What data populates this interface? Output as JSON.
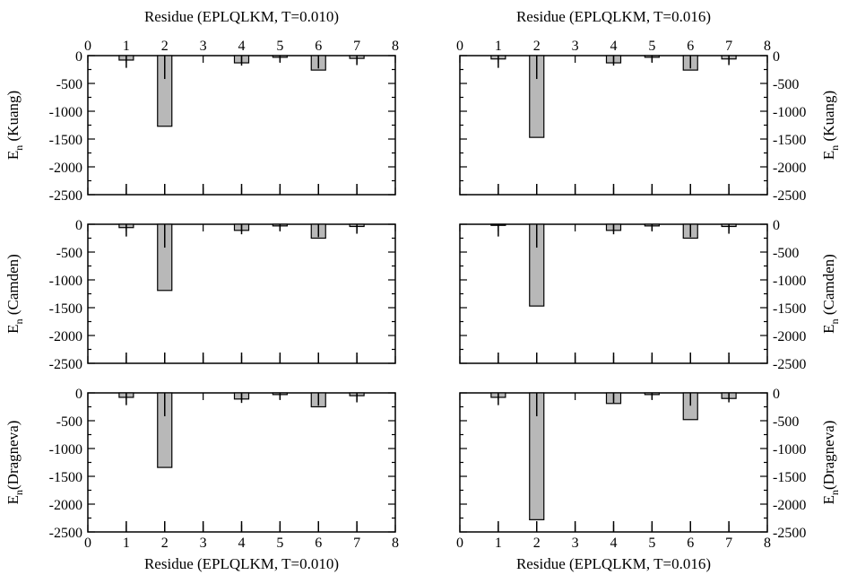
{
  "figure": {
    "top_labels": [
      "Residue (EPLQLKM, T=0.010)",
      "Residue (EPLQLKM, T=0.016)"
    ],
    "bottom_labels": [
      "Residue (EPLQLKM, T=0.010)",
      "Residue (EPLQLKM, T=0.016)"
    ],
    "row_ylabels": [
      {
        "main": "E",
        "sub": "n",
        "rest": " (Kuang)"
      },
      {
        "main": "E",
        "sub": "n",
        "rest": " (Camden)"
      },
      {
        "main": "E",
        "sub": "n",
        "rest": "(Dragneva)"
      }
    ],
    "colors": {
      "bar_fill": "#b8b8b8",
      "bar_stroke": "#000000",
      "axis": "#000000"
    }
  },
  "chart_data": [
    {
      "type": "bar",
      "row": 0,
      "col": 0,
      "ylabel": "E_n (Kuang)",
      "xlabel_top": "Residue (EPLQLKM, T=0.010)",
      "x": [
        1,
        2,
        3,
        4,
        5,
        6,
        7
      ],
      "values": [
        -80,
        -1270,
        0,
        -130,
        -30,
        -260,
        -50
      ],
      "error_low": [
        -220,
        -420,
        0,
        -180,
        -120,
        -230,
        -170
      ],
      "error_high": [
        0,
        0,
        0,
        0,
        0,
        0,
        0
      ],
      "xlim": [
        0,
        8
      ],
      "ylim": [
        -2500,
        0
      ],
      "xticks": [
        "0",
        "1",
        "2",
        "3",
        "4",
        "5",
        "6",
        "7",
        "8"
      ],
      "yticks": [
        "0",
        "-500",
        "-1000",
        "-1500",
        "-2000",
        "-2500"
      ],
      "grid": false
    },
    {
      "type": "bar",
      "row": 0,
      "col": 1,
      "ylabel": "E_n (Kuang)",
      "xlabel_top": "Residue (EPLQLKM, T=0.016)",
      "x": [
        1,
        2,
        3,
        4,
        5,
        6,
        7
      ],
      "values": [
        -60,
        -1470,
        0,
        -130,
        -30,
        -260,
        -60
      ],
      "error_low": [
        -220,
        -420,
        0,
        -180,
        -120,
        -230,
        -170
      ],
      "error_high": [
        0,
        0,
        0,
        0,
        0,
        0,
        0
      ],
      "xlim": [
        0,
        8
      ],
      "ylim": [
        -2500,
        0
      ],
      "xticks": [
        "0",
        "1",
        "2",
        "3",
        "4",
        "5",
        "6",
        "7",
        "8"
      ],
      "yticks": [
        "0",
        "-500",
        "-1000",
        "-1500",
        "-2000",
        "-2500"
      ],
      "grid": false
    },
    {
      "type": "bar",
      "row": 1,
      "col": 0,
      "ylabel": "E_n (Camden)",
      "x": [
        1,
        2,
        3,
        4,
        5,
        6,
        7
      ],
      "values": [
        -60,
        -1190,
        0,
        -110,
        -30,
        -250,
        -40
      ],
      "error_low": [
        -220,
        -420,
        0,
        -180,
        -120,
        -230,
        -170
      ],
      "error_high": [
        0,
        0,
        0,
        0,
        0,
        0,
        0
      ],
      "xlim": [
        0,
        8
      ],
      "ylim": [
        -2500,
        0
      ],
      "xticks": [],
      "yticks": [
        "0",
        "-500",
        "-1000",
        "-1500",
        "-2000",
        "-2500"
      ],
      "grid": false
    },
    {
      "type": "bar",
      "row": 1,
      "col": 1,
      "ylabel": "E_n (Camden)",
      "x": [
        1,
        2,
        3,
        4,
        5,
        6,
        7
      ],
      "values": [
        -20,
        -1470,
        0,
        -110,
        -30,
        -250,
        -40
      ],
      "error_low": [
        -220,
        -420,
        0,
        -180,
        -120,
        -230,
        -170
      ],
      "error_high": [
        0,
        0,
        0,
        0,
        0,
        0,
        0
      ],
      "xlim": [
        0,
        8
      ],
      "ylim": [
        -2500,
        0
      ],
      "xticks": [],
      "yticks": [
        "0",
        "-500",
        "-1000",
        "-1500",
        "-2000",
        "-2500"
      ],
      "grid": false
    },
    {
      "type": "bar",
      "row": 2,
      "col": 0,
      "ylabel": "E_n (Dragneva)",
      "xlabel": "Residue (EPLQLKM, T=0.010)",
      "x": [
        1,
        2,
        3,
        4,
        5,
        6,
        7
      ],
      "values": [
        -80,
        -1340,
        0,
        -110,
        -30,
        -250,
        -50
      ],
      "error_low": [
        -220,
        -420,
        0,
        -180,
        -120,
        -230,
        -170
      ],
      "error_high": [
        0,
        0,
        0,
        0,
        0,
        0,
        0
      ],
      "xlim": [
        0,
        8
      ],
      "ylim": [
        -2500,
        0
      ],
      "xticks": [
        "0",
        "1",
        "2",
        "3",
        "4",
        "5",
        "6",
        "7",
        "8"
      ],
      "yticks": [
        "0",
        "-500",
        "-1000",
        "-1500",
        "-2000",
        "-2500"
      ],
      "grid": false
    },
    {
      "type": "bar",
      "row": 2,
      "col": 1,
      "ylabel": "E_n (Dragneva)",
      "xlabel": "Residue (EPLQLKM, T=0.016)",
      "x": [
        1,
        2,
        3,
        4,
        5,
        6,
        7
      ],
      "values": [
        -80,
        -2280,
        0,
        -190,
        -30,
        -480,
        -100
      ],
      "error_low": [
        -220,
        -420,
        0,
        -180,
        -120,
        -230,
        -170
      ],
      "error_high": [
        0,
        0,
        0,
        0,
        0,
        0,
        0
      ],
      "xlim": [
        0,
        8
      ],
      "ylim": [
        -2500,
        0
      ],
      "xticks": [
        "0",
        "1",
        "2",
        "3",
        "4",
        "5",
        "6",
        "7",
        "8"
      ],
      "yticks": [
        "0",
        "-500",
        "-1000",
        "-1500",
        "-2000",
        "-2500"
      ],
      "grid": false
    }
  ]
}
